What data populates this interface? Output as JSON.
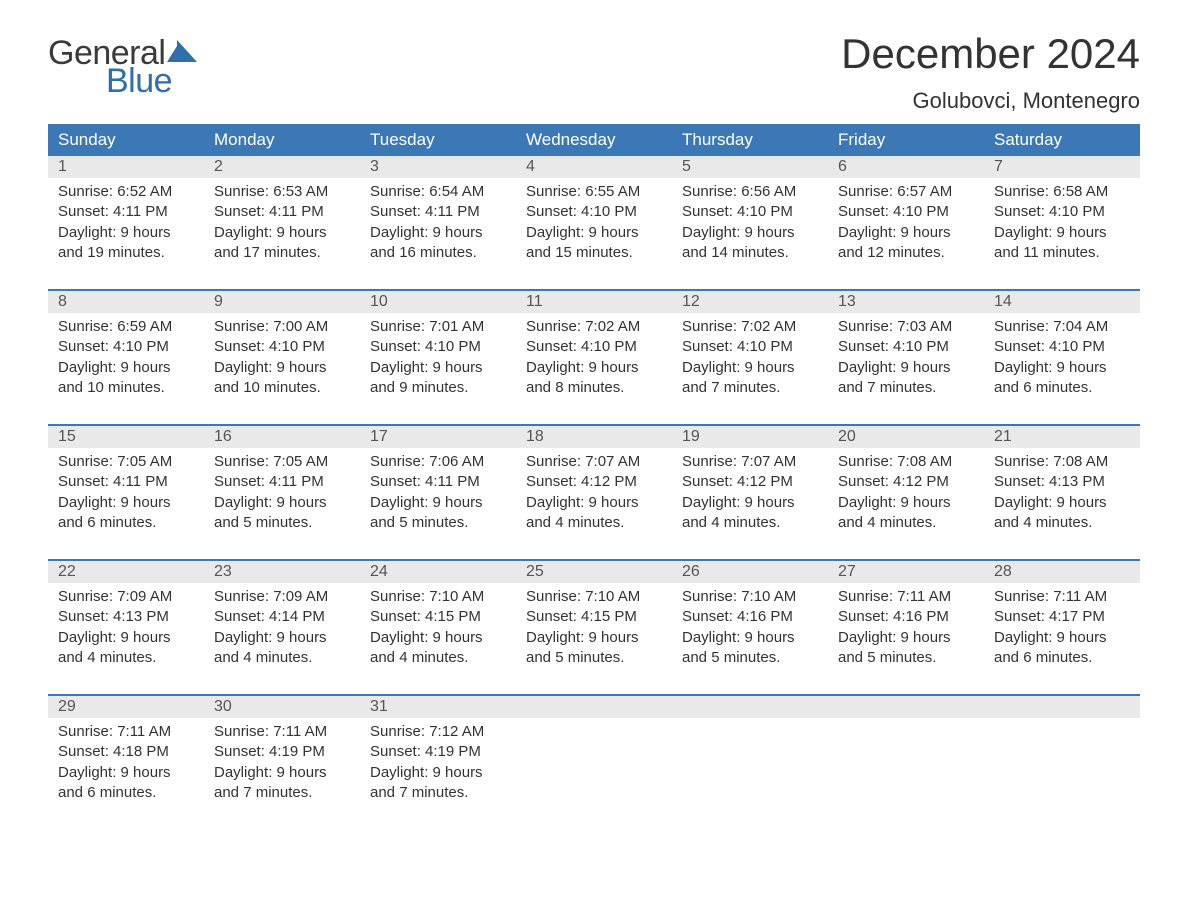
{
  "logo": {
    "text1": "General",
    "text2": "Blue",
    "text_color": "#3a3a3a",
    "accent_color": "#2f6fad"
  },
  "title": "December 2024",
  "location": "Golubovci, Montenegro",
  "colors": {
    "header_bg": "#3b78b5",
    "header_text": "#ffffff",
    "daynum_bg": "#e9e9e9",
    "daynum_text": "#555555",
    "body_text": "#333333",
    "rule": "#3b78b5",
    "page_bg": "#ffffff"
  },
  "weekdays": [
    "Sunday",
    "Monday",
    "Tuesday",
    "Wednesday",
    "Thursday",
    "Friday",
    "Saturday"
  ],
  "weeks": [
    [
      {
        "n": "1",
        "sr": "6:52 AM",
        "ss": "4:11 PM",
        "dl": "9 hours and 19 minutes."
      },
      {
        "n": "2",
        "sr": "6:53 AM",
        "ss": "4:11 PM",
        "dl": "9 hours and 17 minutes."
      },
      {
        "n": "3",
        "sr": "6:54 AM",
        "ss": "4:11 PM",
        "dl": "9 hours and 16 minutes."
      },
      {
        "n": "4",
        "sr": "6:55 AM",
        "ss": "4:10 PM",
        "dl": "9 hours and 15 minutes."
      },
      {
        "n": "5",
        "sr": "6:56 AM",
        "ss": "4:10 PM",
        "dl": "9 hours and 14 minutes."
      },
      {
        "n": "6",
        "sr": "6:57 AM",
        "ss": "4:10 PM",
        "dl": "9 hours and 12 minutes."
      },
      {
        "n": "7",
        "sr": "6:58 AM",
        "ss": "4:10 PM",
        "dl": "9 hours and 11 minutes."
      }
    ],
    [
      {
        "n": "8",
        "sr": "6:59 AM",
        "ss": "4:10 PM",
        "dl": "9 hours and 10 minutes."
      },
      {
        "n": "9",
        "sr": "7:00 AM",
        "ss": "4:10 PM",
        "dl": "9 hours and 10 minutes."
      },
      {
        "n": "10",
        "sr": "7:01 AM",
        "ss": "4:10 PM",
        "dl": "9 hours and 9 minutes."
      },
      {
        "n": "11",
        "sr": "7:02 AM",
        "ss": "4:10 PM",
        "dl": "9 hours and 8 minutes."
      },
      {
        "n": "12",
        "sr": "7:02 AM",
        "ss": "4:10 PM",
        "dl": "9 hours and 7 minutes."
      },
      {
        "n": "13",
        "sr": "7:03 AM",
        "ss": "4:10 PM",
        "dl": "9 hours and 7 minutes."
      },
      {
        "n": "14",
        "sr": "7:04 AM",
        "ss": "4:10 PM",
        "dl": "9 hours and 6 minutes."
      }
    ],
    [
      {
        "n": "15",
        "sr": "7:05 AM",
        "ss": "4:11 PM",
        "dl": "9 hours and 6 minutes."
      },
      {
        "n": "16",
        "sr": "7:05 AM",
        "ss": "4:11 PM",
        "dl": "9 hours and 5 minutes."
      },
      {
        "n": "17",
        "sr": "7:06 AM",
        "ss": "4:11 PM",
        "dl": "9 hours and 5 minutes."
      },
      {
        "n": "18",
        "sr": "7:07 AM",
        "ss": "4:12 PM",
        "dl": "9 hours and 4 minutes."
      },
      {
        "n": "19",
        "sr": "7:07 AM",
        "ss": "4:12 PM",
        "dl": "9 hours and 4 minutes."
      },
      {
        "n": "20",
        "sr": "7:08 AM",
        "ss": "4:12 PM",
        "dl": "9 hours and 4 minutes."
      },
      {
        "n": "21",
        "sr": "7:08 AM",
        "ss": "4:13 PM",
        "dl": "9 hours and 4 minutes."
      }
    ],
    [
      {
        "n": "22",
        "sr": "7:09 AM",
        "ss": "4:13 PM",
        "dl": "9 hours and 4 minutes."
      },
      {
        "n": "23",
        "sr": "7:09 AM",
        "ss": "4:14 PM",
        "dl": "9 hours and 4 minutes."
      },
      {
        "n": "24",
        "sr": "7:10 AM",
        "ss": "4:15 PM",
        "dl": "9 hours and 4 minutes."
      },
      {
        "n": "25",
        "sr": "7:10 AM",
        "ss": "4:15 PM",
        "dl": "9 hours and 5 minutes."
      },
      {
        "n": "26",
        "sr": "7:10 AM",
        "ss": "4:16 PM",
        "dl": "9 hours and 5 minutes."
      },
      {
        "n": "27",
        "sr": "7:11 AM",
        "ss": "4:16 PM",
        "dl": "9 hours and 5 minutes."
      },
      {
        "n": "28",
        "sr": "7:11 AM",
        "ss": "4:17 PM",
        "dl": "9 hours and 6 minutes."
      }
    ],
    [
      {
        "n": "29",
        "sr": "7:11 AM",
        "ss": "4:18 PM",
        "dl": "9 hours and 6 minutes."
      },
      {
        "n": "30",
        "sr": "7:11 AM",
        "ss": "4:19 PM",
        "dl": "9 hours and 7 minutes."
      },
      {
        "n": "31",
        "sr": "7:12 AM",
        "ss": "4:19 PM",
        "dl": "9 hours and 7 minutes."
      },
      null,
      null,
      null,
      null
    ]
  ],
  "labels": {
    "sunrise": "Sunrise:",
    "sunset": "Sunset:",
    "daylight": "Daylight:"
  }
}
